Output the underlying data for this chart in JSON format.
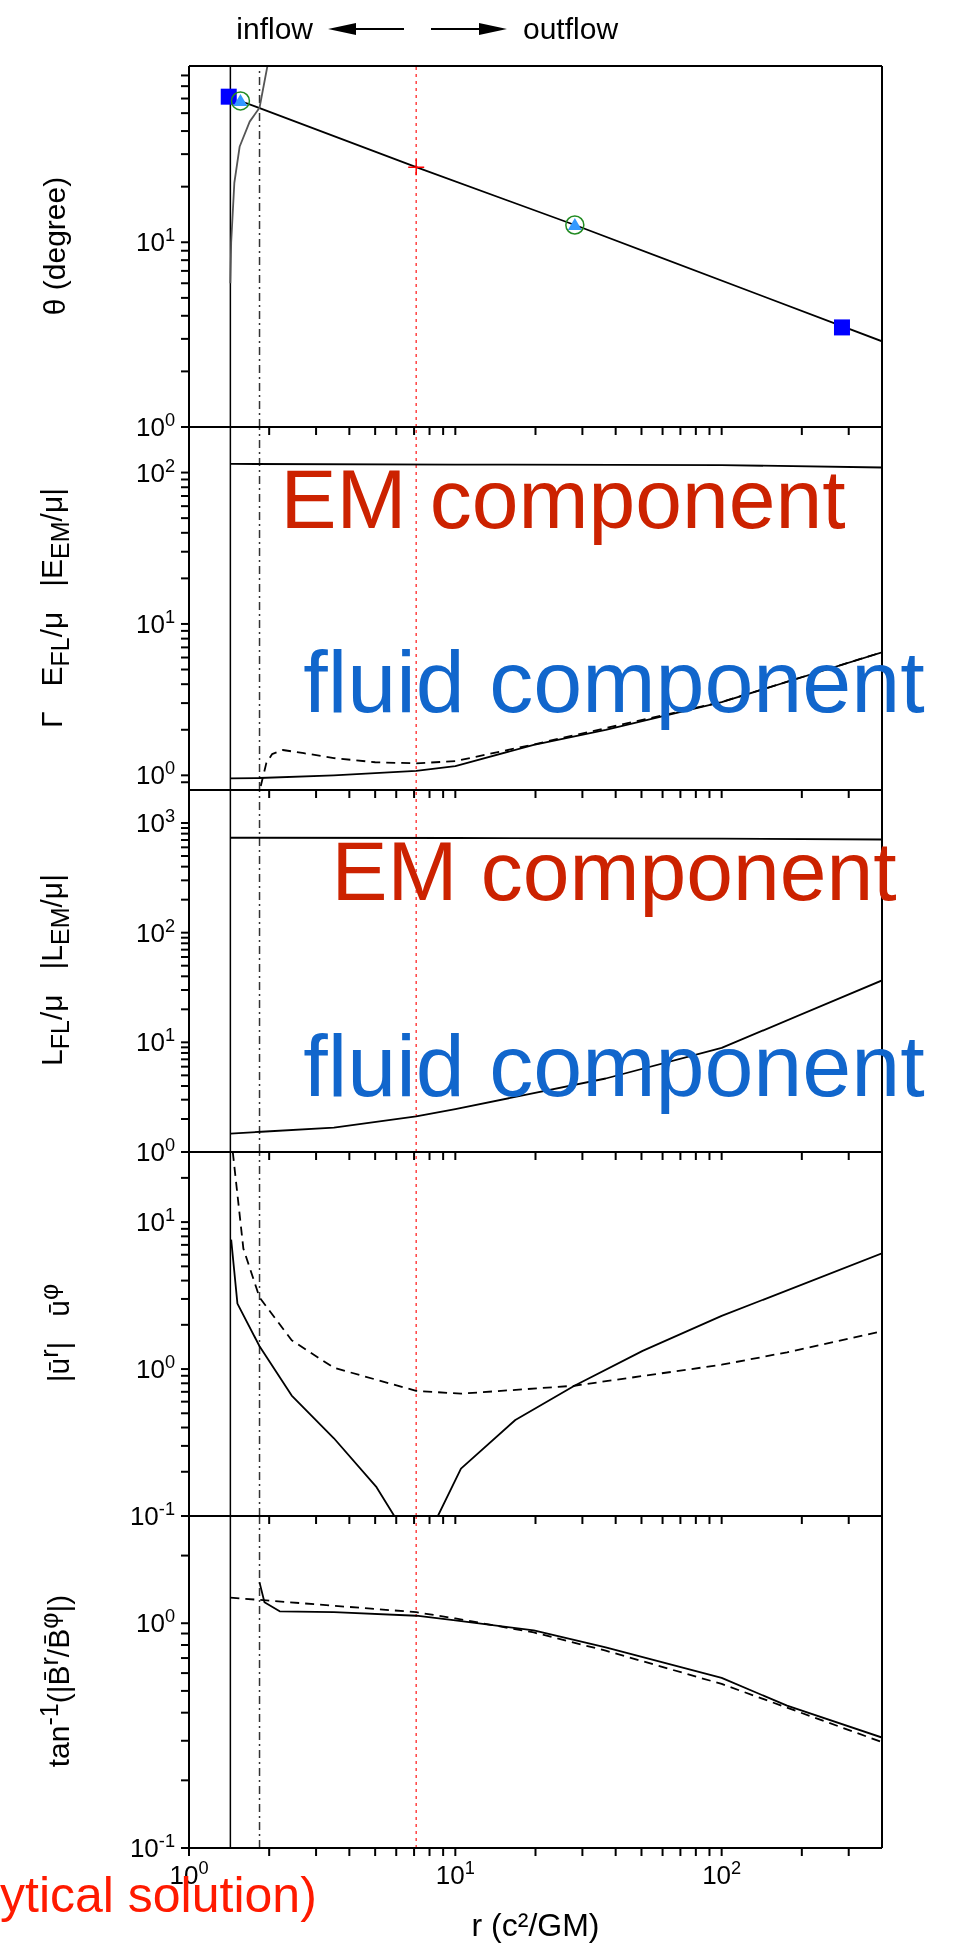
{
  "chart_data": [
    {
      "type": "line",
      "ylabel": "θ (degree)",
      "annotations": [
        "inflow",
        "outflow"
      ],
      "log": "xy",
      "xlim": [
        1,
        400
      ],
      "ylim": [
        1,
        90
      ],
      "tick_labels": "y",
      "xticks": [
        1,
        2,
        3,
        4,
        5,
        6,
        7,
        8,
        9,
        10,
        20,
        30,
        40,
        50,
        60,
        70,
        80,
        90,
        100,
        200,
        300
      ],
      "yticks": [
        {
          "value": 1,
          "label": "10$^{0}$"
        },
        {
          "value": 2,
          "label": null
        },
        {
          "value": 3,
          "label": null
        },
        {
          "value": 4,
          "label": null
        },
        {
          "value": 5,
          "label": null
        },
        {
          "value": 6,
          "label": null
        },
        {
          "value": 7,
          "label": null
        },
        {
          "value": 8,
          "label": null
        },
        {
          "value": 9,
          "label": null
        },
        {
          "value": 10,
          "label": "10$^{1}$"
        },
        {
          "value": 20,
          "label": null
        },
        {
          "value": 30,
          "label": null
        },
        {
          "value": 40,
          "label": null
        },
        {
          "value": 50,
          "label": null
        },
        {
          "value": 60,
          "label": null
        },
        {
          "value": 70,
          "label": null
        },
        {
          "value": 80,
          "label": null
        }
      ],
      "ref_lines": [
        {
          "axis": "x",
          "value": 1.43,
          "color": "#000000",
          "line_style": "solid"
        },
        {
          "axis": "x",
          "value": 1.84,
          "color": "#333333",
          "line_style": "dashdot"
        },
        {
          "axis": "x",
          "value": 7.13,
          "color": "#ff4444",
          "line_style": "dotted"
        }
      ],
      "series": [
        {
          "type": "line",
          "color": "#000000",
          "line_style": "solid",
          "x": [
            1.56,
            7.13,
            28.1,
            400
          ],
          "values": [
            58.2,
            25.5,
            12.4,
            2.91
          ]
        },
        {
          "type": "line",
          "color": "#555555",
          "line_style": "solid",
          "x": [
            1.43,
            1.44,
            1.48,
            1.55,
            1.69,
            1.84,
            1.97
          ],
          "values": [
            6,
            10,
            21,
            33,
            45,
            53.5,
            90
          ]
        },
        {
          "type": "scatter",
          "color": "#0000ff",
          "marker": "square",
          "x": [
            1.41,
            283
          ],
          "values": [
            61.4,
            3.46
          ]
        },
        {
          "type": "scatter",
          "color": "#3399ff",
          "marker": "triangle",
          "x": [
            1.56,
            28.1
          ],
          "values": [
            58.2,
            12.4
          ]
        },
        {
          "type": "scatter",
          "color": "#228b22",
          "marker": "circle",
          "x": [
            1.56,
            28.1
          ],
          "values": [
            58.2,
            12.4
          ]
        },
        {
          "type": "scatter",
          "color": "#ff0000",
          "marker": "cross",
          "x": [
            7.13
          ],
          "values": [
            25.5
          ]
        }
      ]
    },
    {
      "type": "line",
      "ylabel": "Γ   E$_{FL}$/μ   |E$_{EM}$/μ|",
      "annotations": [
        "EM component",
        "fluid component"
      ],
      "log": "xy",
      "xlim": [
        1,
        400
      ],
      "ylim": [
        0.8,
        200
      ],
      "tick_labels": "y",
      "xticks": [
        1,
        2,
        3,
        4,
        5,
        6,
        7,
        8,
        9,
        10,
        20,
        30,
        40,
        50,
        60,
        70,
        80,
        90,
        100,
        200,
        300
      ],
      "yticks": [
        {
          "value": 0.9,
          "label": null
        },
        {
          "value": 1,
          "label": "10$^{0}$"
        },
        {
          "value": 2,
          "label": null
        },
        {
          "value": 3,
          "label": null
        },
        {
          "value": 4,
          "label": null
        },
        {
          "value": 5,
          "label": null
        },
        {
          "value": 6,
          "label": null
        },
        {
          "value": 7,
          "label": null
        },
        {
          "value": 8,
          "label": null
        },
        {
          "value": 9,
          "label": null
        },
        {
          "value": 10,
          "label": "10$^{1}$"
        },
        {
          "value": 20,
          "label": null
        },
        {
          "value": 30,
          "label": null
        },
        {
          "value": 40,
          "label": null
        },
        {
          "value": 50,
          "label": null
        },
        {
          "value": 60,
          "label": null
        },
        {
          "value": 70,
          "label": null
        },
        {
          "value": 80,
          "label": null
        },
        {
          "value": 90,
          "label": null
        },
        {
          "value": 100,
          "label": "10$^{2}$"
        }
      ],
      "ref_lines": [
        {
          "axis": "x",
          "value": 1.43,
          "color": "#000000",
          "line_style": "solid"
        },
        {
          "axis": "x",
          "value": 1.84,
          "color": "#333333",
          "line_style": "dashdot"
        },
        {
          "axis": "x",
          "value": 7.13,
          "color": "#ff4444",
          "line_style": "dotted"
        }
      ],
      "series": [
        {
          "type": "line",
          "color": "#000000",
          "line_style": "solid",
          "x": [
            1.43,
            10,
            100,
            400
          ],
          "values": [
            114,
            113,
            112,
            108
          ]
        },
        {
          "type": "line",
          "color": "#000000",
          "line_style": "solid",
          "x": [
            1.43,
            1.84,
            3.5,
            7.13,
            10,
            19.7,
            36.7,
            100,
            400
          ],
          "values": [
            0.955,
            0.96,
            1.0,
            1.07,
            1.15,
            1.59,
            2.0,
            3.04,
            6.5
          ]
        },
        {
          "type": "line",
          "color": "#000000",
          "line_style": "dashed",
          "x": [
            1.86,
            1.95,
            2.05,
            2.25,
            2.7,
            3.5,
            5,
            7.13,
            10,
            19.7,
            36.7,
            100,
            400
          ],
          "values": [
            0.85,
            1.2,
            1.38,
            1.47,
            1.4,
            1.3,
            1.22,
            1.2,
            1.24,
            1.6,
            2.05,
            3.05,
            6.5
          ]
        }
      ]
    },
    {
      "type": "line",
      "ylabel": "L$_{FL}$/μ   |L$_{EM}$/μ|",
      "annotations": [
        "EM component",
        "fluid component"
      ],
      "log": "xy",
      "xlim": [
        1,
        400
      ],
      "ylim": [
        1,
        2000
      ],
      "tick_labels": "y",
      "xticks": [
        1,
        2,
        3,
        4,
        5,
        6,
        7,
        8,
        9,
        10,
        20,
        30,
        40,
        50,
        60,
        70,
        80,
        90,
        100,
        200,
        300
      ],
      "yticks": [
        {
          "value": 1,
          "label": "10$^{0}$"
        },
        {
          "value": 2,
          "label": null
        },
        {
          "value": 3,
          "label": null
        },
        {
          "value": 4,
          "label": null
        },
        {
          "value": 5,
          "label": null
        },
        {
          "value": 6,
          "label": null
        },
        {
          "value": 7,
          "label": null
        },
        {
          "value": 8,
          "label": null
        },
        {
          "value": 9,
          "label": null
        },
        {
          "value": 10,
          "label": "10$^{1}$"
        },
        {
          "value": 20,
          "label": null
        },
        {
          "value": 30,
          "label": null
        },
        {
          "value": 40,
          "label": null
        },
        {
          "value": 50,
          "label": null
        },
        {
          "value": 60,
          "label": null
        },
        {
          "value": 70,
          "label": null
        },
        {
          "value": 80,
          "label": null
        },
        {
          "value": 90,
          "label": null
        },
        {
          "value": 100,
          "label": "10$^{2}$"
        },
        {
          "value": 200,
          "label": null
        },
        {
          "value": 300,
          "label": null
        },
        {
          "value": 400,
          "label": null
        },
        {
          "value": 500,
          "label": null
        },
        {
          "value": 600,
          "label": null
        },
        {
          "value": 700,
          "label": null
        },
        {
          "value": 800,
          "label": null
        },
        {
          "value": 900,
          "label": null
        },
        {
          "value": 1000,
          "label": "10$^{3}$"
        }
      ],
      "ref_lines": [
        {
          "axis": "x",
          "value": 1.43,
          "color": "#000000",
          "line_style": "solid"
        },
        {
          "axis": "x",
          "value": 1.84,
          "color": "#333333",
          "line_style": "dashdot"
        },
        {
          "axis": "x",
          "value": 7.13,
          "color": "#ff4444",
          "line_style": "dotted"
        }
      ],
      "series": [
        {
          "type": "line",
          "color": "#000000",
          "line_style": "solid",
          "x": [
            1.43,
            10,
            100,
            400
          ],
          "values": [
            734,
            730,
            720,
            707
          ]
        },
        {
          "type": "line",
          "color": "#000000",
          "line_style": "solid",
          "x": [
            1.43,
            1.87,
            3.5,
            7.13,
            10,
            36.7,
            100,
            400
          ],
          "values": [
            1.47,
            1.53,
            1.67,
            2.11,
            2.46,
            4.68,
            8.9,
            36.7
          ]
        }
      ]
    },
    {
      "type": "line",
      "ylabel": "|ū$^{r}$|   ū$^{φ}$",
      "log": "xy",
      "xlim": [
        1,
        400
      ],
      "ylim": [
        0.1,
        30
      ],
      "tick_labels": "y",
      "xticks": [
        1,
        2,
        3,
        4,
        5,
        6,
        7,
        8,
        9,
        10,
        20,
        30,
        40,
        50,
        60,
        70,
        80,
        90,
        100,
        200,
        300
      ],
      "yticks": [
        {
          "value": 0.1,
          "label": "10$^{-1}$"
        },
        {
          "value": 0.2,
          "label": null
        },
        {
          "value": 0.3,
          "label": null
        },
        {
          "value": 0.4,
          "label": null
        },
        {
          "value": 0.5,
          "label": null
        },
        {
          "value": 0.6,
          "label": null
        },
        {
          "value": 0.7,
          "label": null
        },
        {
          "value": 0.8,
          "label": null
        },
        {
          "value": 0.9,
          "label": null
        },
        {
          "value": 1,
          "label": "10$^{0}$"
        },
        {
          "value": 2,
          "label": null
        },
        {
          "value": 3,
          "label": null
        },
        {
          "value": 4,
          "label": null
        },
        {
          "value": 5,
          "label": null
        },
        {
          "value": 6,
          "label": null
        },
        {
          "value": 7,
          "label": null
        },
        {
          "value": 8,
          "label": null
        },
        {
          "value": 9,
          "label": null
        },
        {
          "value": 10,
          "label": "10$^{1}$"
        },
        {
          "value": 20,
          "label": null
        }
      ],
      "ref_lines": [
        {
          "axis": "x",
          "value": 1.43,
          "color": "#000000",
          "line_style": "solid"
        },
        {
          "axis": "x",
          "value": 1.84,
          "color": "#333333",
          "line_style": "dashdot"
        },
        {
          "axis": "x",
          "value": 7.13,
          "color": "#ff4444",
          "line_style": "dotted"
        }
      ],
      "series": [
        {
          "type": "line",
          "color": "#000000",
          "line_style": "solid",
          "x": [
            1.44,
            1.52,
            1.84,
            2.43,
            3.5,
            5.06,
            5.9
          ],
          "values": [
            7.6,
            2.79,
            1.43,
            0.66,
            0.338,
            0.157,
            0.1
          ]
        },
        {
          "type": "line",
          "color": "#000000",
          "line_style": "solid",
          "x": [
            8.6,
            10.5,
            16.8,
            28,
            50.5,
            100,
            400
          ],
          "values": [
            0.1,
            0.21,
            0.45,
            0.77,
            1.33,
            2.3,
            6.13
          ]
        },
        {
          "type": "line",
          "color": "#000000",
          "line_style": "dashed",
          "x": [
            1.46,
            1.6,
            1.84,
            2.43,
            3.5,
            7.13,
            10.5,
            28,
            100,
            176,
            400
          ],
          "values": [
            30,
            6.6,
            3.07,
            1.57,
            1.02,
            0.71,
            0.68,
            0.77,
            1.07,
            1.3,
            1.81
          ]
        }
      ]
    },
    {
      "type": "line",
      "ylabel": "tan$^{-1}$(|B̄$^{r}$/B̄$^{φ}$|)",
      "xlabel": "r (c²/GM)",
      "annotations": [
        "ytical solution)"
      ],
      "log": "xy",
      "xlim": [
        1,
        400
      ],
      "ylim": [
        0.1,
        3
      ],
      "xticks": [
        {
          "value": 1,
          "label": "10$^{0}$"
        },
        {
          "value": 2,
          "label": null
        },
        {
          "value": 3,
          "label": null
        },
        {
          "value": 4,
          "label": null
        },
        {
          "value": 5,
          "label": null
        },
        {
          "value": 6,
          "label": null
        },
        {
          "value": 7,
          "label": null
        },
        {
          "value": 8,
          "label": null
        },
        {
          "value": 9,
          "label": null
        },
        {
          "value": 10,
          "label": "10$^{1}$"
        },
        {
          "value": 20,
          "label": null
        },
        {
          "value": 30,
          "label": null
        },
        {
          "value": 40,
          "label": null
        },
        {
          "value": 50,
          "label": null
        },
        {
          "value": 60,
          "label": null
        },
        {
          "value": 70,
          "label": null
        },
        {
          "value": 80,
          "label": null
        },
        {
          "value": 90,
          "label": null
        },
        {
          "value": 100,
          "label": "10$^{2}$"
        },
        {
          "value": 200,
          "label": null
        },
        {
          "value": 300,
          "label": null
        }
      ],
      "yticks": [
        {
          "value": 0.1,
          "label": "10$^{-1}$"
        },
        {
          "value": 0.2,
          "label": null
        },
        {
          "value": 0.3,
          "label": null
        },
        {
          "value": 0.4,
          "label": null
        },
        {
          "value": 0.5,
          "label": null
        },
        {
          "value": 0.6,
          "label": null
        },
        {
          "value": 0.7,
          "label": null
        },
        {
          "value": 0.8,
          "label": null
        },
        {
          "value": 0.9,
          "label": null
        },
        {
          "value": 1,
          "label": "10$^{0}$"
        },
        {
          "value": 2,
          "label": null
        }
      ],
      "ref_lines": [
        {
          "axis": "x",
          "value": 1.43,
          "color": "#000000",
          "line_style": "solid"
        },
        {
          "axis": "x",
          "value": 1.84,
          "color": "#333333",
          "line_style": "dashdot"
        },
        {
          "axis": "x",
          "value": 7.13,
          "color": "#ff4444",
          "line_style": "dotted"
        }
      ],
      "series": [
        {
          "type": "line",
          "color": "#000000",
          "line_style": "solid",
          "x": [
            1.84,
            1.92,
            2.19,
            3.5,
            7.13,
            10,
            19.7,
            36.7,
            100,
            176,
            400
          ],
          "values": [
            1.52,
            1.24,
            1.13,
            1.12,
            1.08,
            1.03,
            0.93,
            0.78,
            0.571,
            0.43,
            0.31
          ]
        },
        {
          "type": "line",
          "color": "#000000",
          "line_style": "dashed",
          "x": [
            1.43,
            7.13,
            10,
            19.7,
            36.7,
            100,
            400
          ],
          "values": [
            1.3,
            1.12,
            1.05,
            0.91,
            0.755,
            0.537,
            0.296
          ]
        }
      ]
    }
  ]
}
